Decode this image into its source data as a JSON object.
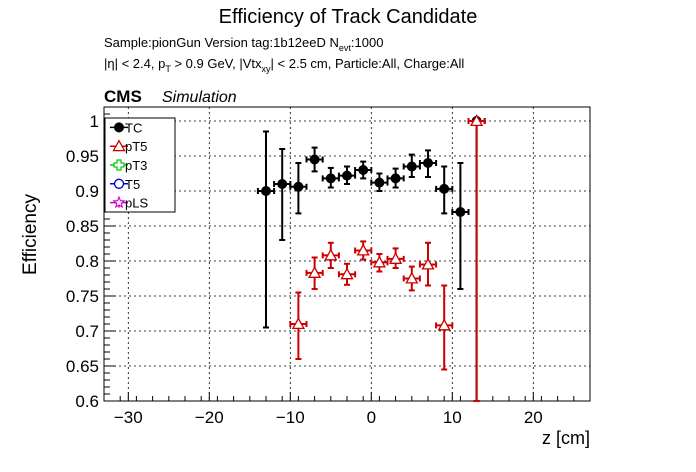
{
  "chart_data": {
    "type": "scatter",
    "title": "Efficiency of Track Candidate",
    "subtitle": {
      "line1": "Sample:pionGun   Version tag:1b12eeD  N",
      "line1_sub": "evt",
      "line1_tail": ":1000",
      "line2_parts": [
        "|η| < 2.4, p",
        "T",
        " > 0.9 GeV, |Vtx",
        "xy",
        "| < 2.5 cm, Particle:All, Charge:All"
      ]
    },
    "cms_label": "CMS",
    "simulation_label": "Simulation",
    "xlabel": "z [cm]",
    "ylabel": "Efficiency",
    "xlim": [
      -33,
      27
    ],
    "ylim": [
      0.6,
      1.02
    ],
    "x_ticks": [
      -30,
      -20,
      -10,
      0,
      10,
      20
    ],
    "x_tick_labels": [
      "−30",
      "−20",
      "−10",
      "0",
      "10",
      "20"
    ],
    "y_ticks": [
      0.6,
      0.65,
      0.7,
      0.75,
      0.8,
      0.85,
      0.9,
      0.95,
      1.0
    ],
    "y_tick_labels": [
      "0.6",
      "0.65",
      "0.7",
      "0.75",
      "0.8",
      "0.85",
      "0.9",
      "0.95",
      "1"
    ],
    "grid": true,
    "legend_position": "top-left",
    "series": [
      {
        "name": "TC",
        "color": "#000000",
        "marker": "filled-circle",
        "points": [
          {
            "x": -13,
            "y": 0.9,
            "ylo": 0.705,
            "yhi": 0.985
          },
          {
            "x": -11,
            "y": 0.91,
            "ylo": 0.83,
            "yhi": 0.96
          },
          {
            "x": -9,
            "y": 0.906,
            "ylo": 0.868,
            "yhi": 0.94
          },
          {
            "x": -7,
            "y": 0.945,
            "ylo": 0.928,
            "yhi": 0.962
          },
          {
            "x": -5,
            "y": 0.918,
            "ylo": 0.905,
            "yhi": 0.933
          },
          {
            "x": -3,
            "y": 0.922,
            "ylo": 0.91,
            "yhi": 0.935
          },
          {
            "x": -1,
            "y": 0.93,
            "ylo": 0.918,
            "yhi": 0.942
          },
          {
            "x": 1,
            "y": 0.912,
            "ylo": 0.9,
            "yhi": 0.925
          },
          {
            "x": 3,
            "y": 0.918,
            "ylo": 0.905,
            "yhi": 0.932
          },
          {
            "x": 5,
            "y": 0.935,
            "ylo": 0.92,
            "yhi": 0.952
          },
          {
            "x": 7,
            "y": 0.94,
            "ylo": 0.92,
            "yhi": 0.958
          },
          {
            "x": 9,
            "y": 0.903,
            "ylo": 0.868,
            "yhi": 0.935
          },
          {
            "x": 11,
            "y": 0.87,
            "ylo": 0.76,
            "yhi": 0.94
          },
          {
            "x": 13,
            "y": 1.0,
            "ylo": 0.6,
            "yhi": 1.0
          }
        ]
      },
      {
        "name": "pT5",
        "color": "#cc0000",
        "marker": "open-triangle",
        "points": [
          {
            "x": -9,
            "y": 0.71,
            "ylo": 0.66,
            "yhi": 0.755
          },
          {
            "x": -7,
            "y": 0.783,
            "ylo": 0.76,
            "yhi": 0.805
          },
          {
            "x": -5,
            "y": 0.808,
            "ylo": 0.79,
            "yhi": 0.826
          },
          {
            "x": -3,
            "y": 0.781,
            "ylo": 0.766,
            "yhi": 0.796
          },
          {
            "x": -1,
            "y": 0.815,
            "ylo": 0.802,
            "yhi": 0.828
          },
          {
            "x": 1,
            "y": 0.798,
            "ylo": 0.785,
            "yhi": 0.81
          },
          {
            "x": 3,
            "y": 0.803,
            "ylo": 0.79,
            "yhi": 0.818
          },
          {
            "x": 5,
            "y": 0.775,
            "ylo": 0.758,
            "yhi": 0.792
          },
          {
            "x": 7,
            "y": 0.795,
            "ylo": 0.765,
            "yhi": 0.826
          },
          {
            "x": 9,
            "y": 0.708,
            "ylo": 0.645,
            "yhi": 0.765
          },
          {
            "x": 13,
            "y": 1.0,
            "ylo": 0.6,
            "yhi": 1.0
          }
        ]
      },
      {
        "name": "pT3",
        "color": "#00cc00",
        "marker": "open-cross",
        "points": []
      },
      {
        "name": "T5",
        "color": "#0000cc",
        "marker": "open-circle",
        "points": []
      },
      {
        "name": "pLS",
        "color": "#cc00cc",
        "marker": "open-star",
        "points": []
      }
    ],
    "x_bin_half_width": 1
  }
}
